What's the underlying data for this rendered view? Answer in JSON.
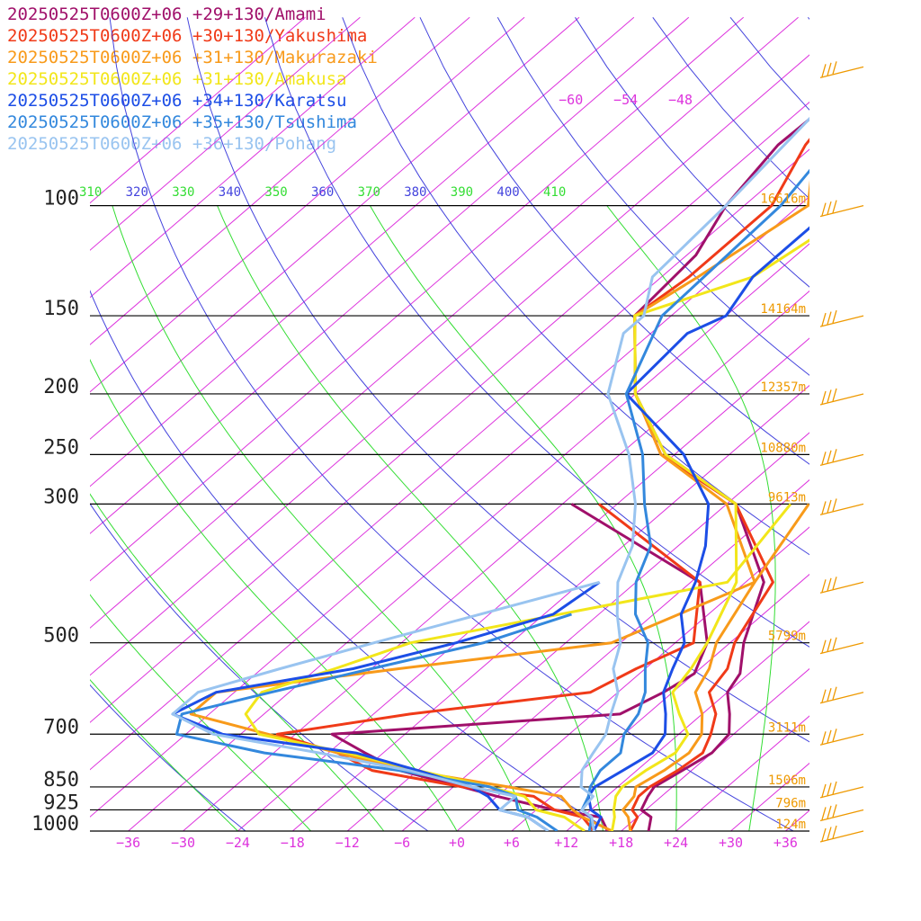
{
  "chart_data": {
    "type": "line",
    "chart_kind": "skew-T log-p sounding",
    "title": "",
    "colors": {
      "isobar": "#000000",
      "isotherm": "#dd33dd",
      "dry_adiabat": "#4444dd",
      "moist_adiabat": "#33dd33",
      "height_label": "#ee9900",
      "wind_barb": "#ee9900"
    },
    "pressure_levels": [
      100,
      150,
      200,
      250,
      300,
      500,
      700,
      850,
      925,
      1000
    ],
    "pressure_labels": [
      "100",
      "150",
      "200",
      "250",
      "300",
      "500",
      "700",
      "850",
      "925",
      "1000"
    ],
    "height_labels": [
      "16616m",
      "14164m",
      "12357m",
      "10880m",
      "9613m",
      "5799m",
      "3111m",
      "1506m",
      "796m",
      "124m"
    ],
    "x_ticks": [
      -36,
      -30,
      -24,
      -18,
      -12,
      -6,
      0,
      6,
      12,
      18,
      24,
      30,
      36
    ],
    "x_tick_labels": [
      "−36",
      "−30",
      "−24",
      "−18",
      "−12",
      "−6",
      "+0",
      "+6",
      "+12",
      "+18",
      "+24",
      "+30",
      "+36"
    ],
    "xlim": [
      -40,
      40
    ],
    "ylim": [
      1000,
      100
    ],
    "y_scale": "log",
    "top_isotherm_labels": [
      "−60",
      "−54",
      "−48"
    ],
    "potential_temperature_labels": [
      "310",
      "320",
      "330",
      "340",
      "350",
      "360",
      "370",
      "380",
      "390",
      "400",
      "410"
    ],
    "series": [
      {
        "name": "20250525T0600Z+06 +29+130/Amami",
        "color": "#a0106a",
        "pressure": [
          1000,
          950,
          925,
          880,
          850,
          800,
          750,
          700,
          650,
          600,
          560,
          500,
          400,
          300,
          250,
          200,
          150,
          120,
          100,
          80,
          60
        ],
        "temperature": [
          21,
          19.5,
          17.5,
          16.5,
          16,
          17,
          18,
          17.5,
          15,
          12,
          11,
          7.5,
          2,
          -11,
          -25,
          -36,
          -46,
          -47,
          -50,
          -52,
          -51.5
        ],
        "dewpoint": [
          16.5,
          14,
          8,
          0,
          -5,
          -14,
          -20,
          -26,
          3,
          5,
          6,
          3.5,
          -5,
          -29
        ]
      },
      {
        "name": "20250525T0600Z+06 +30+130/Yakushima",
        "color": "#f03a18",
        "pressure": [
          1000,
          950,
          925,
          880,
          850,
          800,
          750,
          700,
          650,
          600,
          550,
          500,
          400,
          300,
          250,
          200,
          150,
          130,
          100,
          80,
          60
        ],
        "temperature": [
          19,
          18,
          16.5,
          15.5,
          15.5,
          16.5,
          17,
          15.5,
          13.5,
          10,
          9,
          6.5,
          3,
          -11,
          -25.5,
          -36,
          -46,
          -45,
          -45,
          -49,
          -52
        ],
        "dewpoint": [
          15,
          12,
          8,
          4,
          -5,
          -17,
          -23,
          -32,
          -20,
          -3,
          -1,
          2,
          -5,
          -26
        ]
      },
      {
        "name": "20250525T0600Z+06 +31+130/Makurazaki",
        "color": "#f89a1a",
        "pressure": [
          1000,
          950,
          925,
          880,
          850,
          800,
          750,
          700,
          650,
          600,
          550,
          500,
          400,
          300,
          250,
          200,
          150,
          130,
          100,
          80,
          60
        ],
        "temperature": [
          19,
          17,
          15.5,
          15,
          14,
          15,
          15.5,
          14.5,
          12,
          8.5,
          7,
          4.5,
          1,
          -12,
          -25.5,
          -36,
          -46,
          -44,
          -41,
          -48,
          -52
        ],
        "dewpoint": [
          17,
          12,
          10,
          7,
          0,
          -13,
          -23,
          -33,
          -44,
          -44,
          -27,
          -7,
          1,
          -3
        ]
      },
      {
        "name": "20250525T0600Z+06 +31+130/Amakusa",
        "color": "#f2e61a",
        "pressure": [
          1000,
          950,
          925,
          880,
          850,
          800,
          750,
          700,
          650,
          600,
          550,
          500,
          400,
          300,
          250,
          200,
          150,
          130,
          100,
          80,
          60
        ],
        "temperature": [
          17,
          15.5,
          14.5,
          13,
          12.5,
          13,
          14,
          13,
          9.5,
          6,
          5,
          3.5,
          -1,
          -11,
          -25,
          -36,
          -46,
          -38,
          -35,
          -46,
          -51
        ],
        "dewpoint": [
          14,
          10,
          6,
          3,
          -2,
          -12,
          -22,
          -34,
          -38,
          -39,
          -34,
          -29,
          -2,
          -5
        ]
      },
      {
        "name": "20250525T0600Z+06 +34+130/Karatsu",
        "color": "#1c4ee6",
        "pressure": [
          1000,
          950,
          925,
          880,
          850,
          800,
          750,
          700,
          650,
          600,
          550,
          500,
          450,
          400,
          350,
          300,
          250,
          200,
          160,
          150,
          130,
          100,
          60
        ],
        "temperature": [
          15,
          14,
          12,
          10,
          9.5,
          10.5,
          11.5,
          10.5,
          8,
          5,
          3,
          1,
          -3,
          -5.5,
          -9,
          -14,
          -23,
          -37,
          -38,
          -36,
          -38,
          -38,
          -49
        ],
        "dewpoint": [
          10,
          6,
          2,
          -1,
          -4,
          -12,
          -21,
          -38,
          -46,
          -44,
          -32,
          -24,
          -17,
          -16
        ]
      },
      {
        "name": "20250525T0600Z+06 +35+130/Tsushima",
        "color": "#3388dd",
        "pressure": [
          1000,
          950,
          925,
          880,
          850,
          800,
          750,
          700,
          650,
          600,
          550,
          500,
          450,
          400,
          350,
          300,
          250,
          200,
          150,
          100,
          60
        ],
        "temperature": [
          14.5,
          13,
          11,
          10,
          9,
          8,
          8,
          6,
          5,
          3,
          0,
          -3,
          -8,
          -12,
          -15,
          -21,
          -27.5,
          -37,
          -43,
          -44,
          -49
        ],
        "dewpoint": [
          11,
          7,
          4,
          2,
          -2,
          -14,
          -31,
          -43,
          -45,
          -38,
          -30,
          -21,
          -15
        ]
      },
      {
        "name": "20250525T0600Z+06 +36+130/Pohang",
        "color": "#99c4f0",
        "pressure": [
          1000,
          950,
          925,
          880,
          850,
          800,
          750,
          700,
          650,
          600,
          550,
          500,
          450,
          400,
          350,
          300,
          250,
          200,
          160,
          150,
          130,
          100,
          60
        ],
        "temperature": [
          15,
          13,
          11,
          10.5,
          8,
          6,
          5,
          4,
          2,
          0,
          -3.5,
          -6,
          -10,
          -14,
          -17,
          -22,
          -29,
          -39,
          -45,
          -45,
          -49,
          -50,
          -53
        ],
        "dewpoint": [
          10,
          6,
          2,
          2,
          -4,
          -13,
          -25,
          -39,
          -46,
          -46,
          -40,
          -33,
          -25,
          -16
        ]
      }
    ],
    "wind_barbs_at_pressure": [
      60,
      100,
      150,
      200,
      250,
      300,
      400,
      500,
      600,
      700,
      850,
      925,
      1000
    ]
  }
}
